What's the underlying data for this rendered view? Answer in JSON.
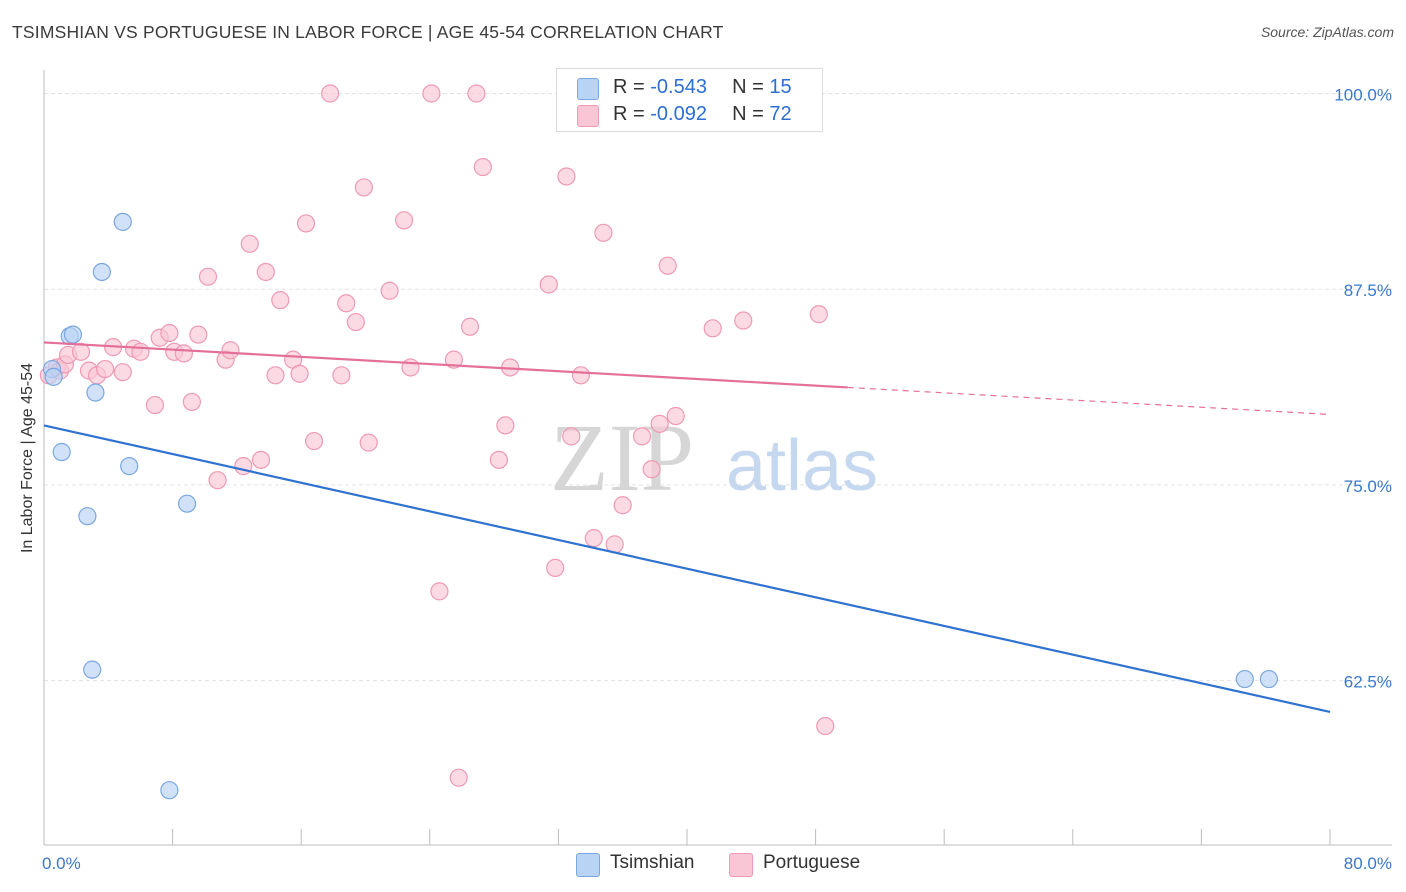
{
  "title": "TSIMSHIAN VS PORTUGUESE IN LABOR FORCE | AGE 45-54 CORRELATION CHART",
  "source": "Source: ZipAtlas.com",
  "watermark": {
    "zip": "ZIP",
    "atlas": "atlas"
  },
  "legend": {
    "rows": [
      {
        "r_label": "R = ",
        "r_value": "-0.543",
        "n_label": "N = ",
        "n_value": "15"
      },
      {
        "r_label": "R = ",
        "r_value": "-0.092",
        "n_label": "N = ",
        "n_value": "72"
      }
    ]
  },
  "colors": {
    "tsimshian_fill": "#b9d3f5",
    "tsimshian_stroke": "#7aa7e0",
    "tsimshian_line": "#2f72d0",
    "portuguese_fill": "#f9c6d5",
    "portuguese_stroke": "#ee9ab4",
    "portuguese_line": "#e46f98",
    "tick_label": "#3a78c9",
    "grid": "#e3e3e3"
  },
  "chart_data": {
    "type": "scatter",
    "title": "TSIMSHIAN VS PORTUGUESE IN LABOR FORCE | AGE 45-54 CORRELATION CHART",
    "xlabel": "",
    "ylabel": "In Labor Force | Age 45-54",
    "xlim": [
      0,
      80
    ],
    "ylim": [
      52,
      101.5
    ],
    "x_tick_labels": [
      "0.0%",
      "80.0%"
    ],
    "y_ticks": [
      62.5,
      75.0,
      87.5,
      100.0
    ],
    "y_tick_labels": [
      "62.5%",
      "75.0%",
      "87.5%",
      "100.0%"
    ],
    "grid": true,
    "legend_position": "top-center",
    "series": [
      {
        "name": "Tsimshian",
        "points": [
          [
            0.5,
            82.4
          ],
          [
            0.6,
            81.9
          ],
          [
            1.1,
            77.1
          ],
          [
            1.6,
            84.5
          ],
          [
            1.8,
            84.6
          ],
          [
            2.7,
            73.0
          ],
          [
            3.0,
            63.2
          ],
          [
            3.2,
            80.9
          ],
          [
            3.6,
            88.6
          ],
          [
            4.9,
            91.8
          ],
          [
            5.3,
            76.2
          ],
          [
            7.8,
            55.5
          ],
          [
            8.9,
            73.8
          ],
          [
            74.7,
            62.6
          ],
          [
            76.2,
            62.6
          ]
        ],
        "trend": {
          "x_start": 0,
          "y_start": 78.8,
          "x_end": 80,
          "y_end": 60.5,
          "dashed_from": null
        }
      },
      {
        "name": "Portuguese",
        "points": [
          [
            0.3,
            82.0
          ],
          [
            0.8,
            82.5
          ],
          [
            1.0,
            82.3
          ],
          [
            1.3,
            82.7
          ],
          [
            1.5,
            83.3
          ],
          [
            2.3,
            83.5
          ],
          [
            2.8,
            82.3
          ],
          [
            3.3,
            82.0
          ],
          [
            3.8,
            82.4
          ],
          [
            4.3,
            83.8
          ],
          [
            4.9,
            82.2
          ],
          [
            5.6,
            83.7
          ],
          [
            6.0,
            83.5
          ],
          [
            6.9,
            80.1
          ],
          [
            7.2,
            84.4
          ],
          [
            7.8,
            84.7
          ],
          [
            8.1,
            83.5
          ],
          [
            8.7,
            83.4
          ],
          [
            9.2,
            80.3
          ],
          [
            9.6,
            84.6
          ],
          [
            10.2,
            88.3
          ],
          [
            10.8,
            75.3
          ],
          [
            11.3,
            83.0
          ],
          [
            11.6,
            83.6
          ],
          [
            12.4,
            76.2
          ],
          [
            12.8,
            90.4
          ],
          [
            13.5,
            76.6
          ],
          [
            13.8,
            88.6
          ],
          [
            14.4,
            82.0
          ],
          [
            14.7,
            86.8
          ],
          [
            15.5,
            83.0
          ],
          [
            15.9,
            82.1
          ],
          [
            16.3,
            91.7
          ],
          [
            16.8,
            77.8
          ],
          [
            17.8,
            100.0
          ],
          [
            18.5,
            82.0
          ],
          [
            18.8,
            86.6
          ],
          [
            19.4,
            85.4
          ],
          [
            19.9,
            94.0
          ],
          [
            20.2,
            77.7
          ],
          [
            21.5,
            87.4
          ],
          [
            22.4,
            91.9
          ],
          [
            22.8,
            82.5
          ],
          [
            24.1,
            100.0
          ],
          [
            24.6,
            68.2
          ],
          [
            25.5,
            83.0
          ],
          [
            25.8,
            56.3
          ],
          [
            26.5,
            85.1
          ],
          [
            26.9,
            100.0
          ],
          [
            27.3,
            95.3
          ],
          [
            28.3,
            76.6
          ],
          [
            28.7,
            78.8
          ],
          [
            29.0,
            82.5
          ],
          [
            31.4,
            87.8
          ],
          [
            31.8,
            69.7
          ],
          [
            32.5,
            94.7
          ],
          [
            32.8,
            78.1
          ],
          [
            33.4,
            82.0
          ],
          [
            34.2,
            71.6
          ],
          [
            34.8,
            91.1
          ],
          [
            35.5,
            71.2
          ],
          [
            36.0,
            73.7
          ],
          [
            37.2,
            78.1
          ],
          [
            37.8,
            76.0
          ],
          [
            38.3,
            78.9
          ],
          [
            38.8,
            89.0
          ],
          [
            39.3,
            79.4
          ],
          [
            41.6,
            85.0
          ],
          [
            43.5,
            85.5
          ],
          [
            45.5,
            100.0
          ],
          [
            48.2,
            85.9
          ],
          [
            48.6,
            59.6
          ]
        ],
        "trend": {
          "x_start": 0,
          "y_start": 84.1,
          "x_end": 80,
          "y_end": 79.5,
          "dashed_from": 50
        }
      }
    ]
  }
}
